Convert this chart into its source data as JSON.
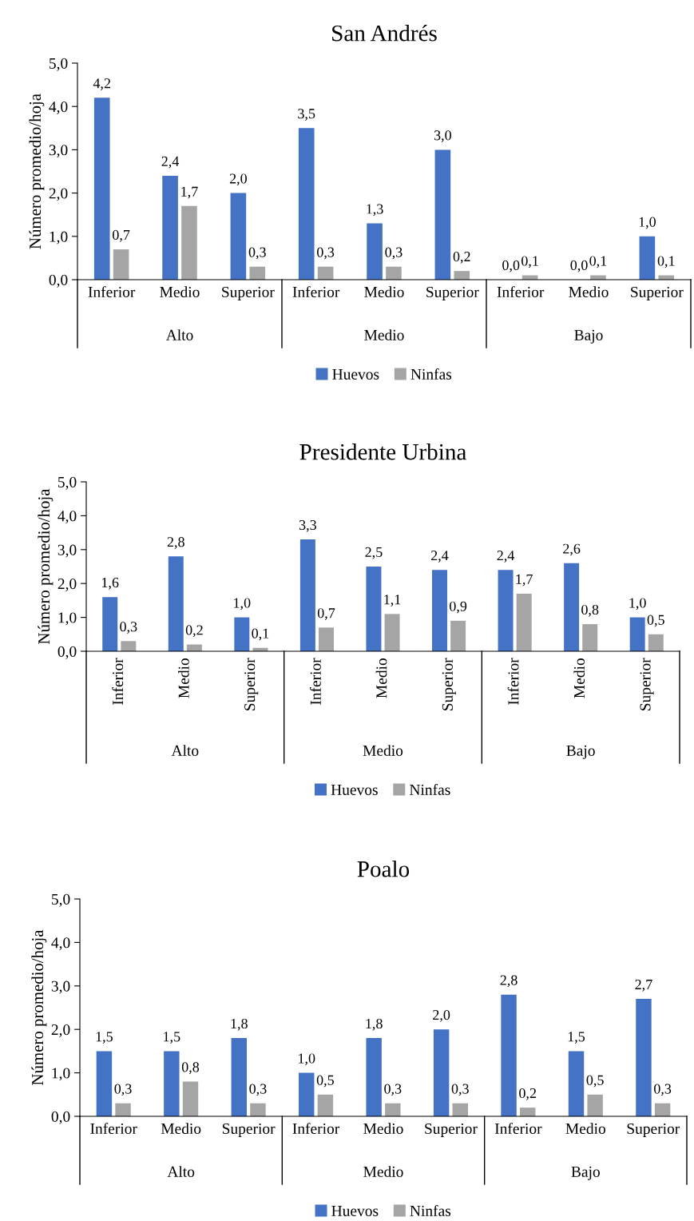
{
  "chart_data": [
    {
      "type": "bar",
      "title": "San Andrés",
      "ylabel": "Número promedio/hoja",
      "categories": [
        "Inferior",
        "Medio",
        "Superior",
        "Inferior",
        "Medio",
        "Superior",
        "Inferior",
        "Medio",
        "Superior"
      ],
      "annotations": [
        "Alto",
        "Medio",
        "Bajo"
      ],
      "series": [
        {
          "name": "Huevos",
          "color": "#4472c4",
          "values": [
            4.2,
            2.4,
            2.0,
            3.5,
            1.3,
            3.0,
            0.0,
            0.0,
            1.0
          ],
          "value_labels": [
            "4,2",
            "2,4",
            "2,0",
            "3,5",
            "1,3",
            "3,0",
            "0,0",
            "0,0",
            "1,0"
          ]
        },
        {
          "name": "Ninfas",
          "color": "#a5a5a5",
          "values": [
            0.7,
            1.7,
            0.3,
            0.3,
            0.3,
            0.2,
            0.1,
            0.1,
            0.1
          ],
          "value_labels": [
            "0,7",
            "1,7",
            "0,3",
            "0,3",
            "0,3",
            "0,2",
            "0,1",
            "0,1",
            "0,1"
          ]
        }
      ],
      "ylim": [
        0,
        5
      ],
      "yticks": [
        {
          "value": 0,
          "label": "0,0"
        },
        {
          "value": 1,
          "label": "1,0"
        },
        {
          "value": 2,
          "label": "2,0"
        },
        {
          "value": 3,
          "label": "3,0"
        },
        {
          "value": 4,
          "label": "4,0"
        },
        {
          "value": 5,
          "label": "5,0"
        }
      ],
      "grid": false,
      "legend": "bottom"
    },
    {
      "type": "bar",
      "title": "Presidente Urbina",
      "ylabel": "Número promedio/hoja",
      "categories": [
        "Inferior",
        "Medio",
        "Superior",
        "Inferior",
        "Medio",
        "Superior",
        "Inferior",
        "Medio",
        "Superior"
      ],
      "annotations": [
        "Alto",
        "Medio",
        "Bajo"
      ],
      "series": [
        {
          "name": "Huevos",
          "color": "#4472c4",
          "values": [
            1.6,
            2.8,
            1.0,
            3.3,
            2.5,
            2.4,
            2.4,
            2.6,
            1.0
          ],
          "value_labels": [
            "1,6",
            "2,8",
            "1,0",
            "3,3",
            "2,5",
            "2,4",
            "2,4",
            "2,6",
            "1,0"
          ]
        },
        {
          "name": "Ninfas",
          "color": "#a5a5a5",
          "values": [
            0.3,
            0.2,
            0.1,
            0.7,
            1.1,
            0.9,
            1.7,
            0.8,
            0.5
          ],
          "value_labels": [
            "0,3",
            "0,2",
            "0,1",
            "0,7",
            "1,1",
            "0,9",
            "1,7",
            "0,8",
            "0,5"
          ]
        }
      ],
      "ylim": [
        0,
        5
      ],
      "yticks": [
        {
          "value": 0,
          "label": "0,0"
        },
        {
          "value": 1,
          "label": "1,0"
        },
        {
          "value": 2,
          "label": "2,0"
        },
        {
          "value": 3,
          "label": "3,0"
        },
        {
          "value": 4,
          "label": "4,0"
        },
        {
          "value": 5,
          "label": "5,0"
        }
      ],
      "grid": false,
      "legend": "bottom"
    },
    {
      "type": "bar",
      "title": "Poalo",
      "ylabel": "Número promedio/hoja",
      "categories": [
        "Inferior",
        "Medio",
        "Superior",
        "Inferior",
        "Medio",
        "Superior",
        "Inferior",
        "Medio",
        "Superior"
      ],
      "annotations": [
        "Alto",
        "Medio",
        "Bajo"
      ],
      "series": [
        {
          "name": "Huevos",
          "color": "#4472c4",
          "values": [
            1.5,
            1.5,
            1.8,
            1.0,
            1.8,
            2.0,
            2.8,
            1.5,
            2.7
          ],
          "value_labels": [
            "1,5",
            "1,5",
            "1,8",
            "1,0",
            "1,8",
            "2,0",
            "2,8",
            "1,5",
            "2,7"
          ]
        },
        {
          "name": "Ninfas",
          "color": "#a5a5a5",
          "values": [
            0.3,
            0.8,
            0.3,
            0.5,
            0.3,
            0.3,
            0.2,
            0.5,
            0.3
          ],
          "value_labels": [
            "0,3",
            "0,8",
            "0,3",
            "0,5",
            "0,3",
            "0,3",
            "0,2",
            "0,5",
            "0,3"
          ]
        }
      ],
      "ylim": [
        0,
        5
      ],
      "yticks": [
        {
          "value": 0,
          "label": "0,0"
        },
        {
          "value": 1,
          "label": "1,0"
        },
        {
          "value": 2,
          "label": "2,0"
        },
        {
          "value": 3,
          "label": "3,0"
        },
        {
          "value": 4,
          "label": "4,0"
        },
        {
          "value": 5,
          "label": "5,0"
        }
      ],
      "grid": false,
      "legend": "bottom"
    }
  ]
}
